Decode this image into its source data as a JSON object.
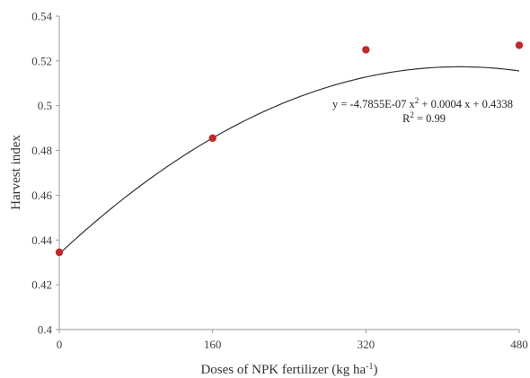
{
  "chart_data": {
    "type": "scatter",
    "title": "",
    "xlabel": "Doses of NPK fertilizer (kg ha",
    "xlabel_sup": "-1",
    "xlabel_end": ")",
    "ylabel": "Harvest index",
    "x_ticks": [
      0,
      160,
      320,
      480
    ],
    "x_tick_labels": [
      "0",
      "160",
      "320",
      "480"
    ],
    "y_ticks": [
      0.4,
      0.42,
      0.44,
      0.46,
      0.48,
      0.5,
      0.52,
      0.54
    ],
    "y_tick_labels": [
      "0.4",
      "0.42",
      "0.44",
      "0.46",
      "0.48",
      "0.5",
      "0.52",
      "0.54"
    ],
    "xlim": [
      0,
      480
    ],
    "ylim": [
      0.4,
      0.54
    ],
    "grid": false,
    "legend": "none",
    "series": [
      {
        "x": [
          0,
          160,
          320,
          480
        ],
        "y": [
          0.4345,
          0.4855,
          0.525,
          0.527
        ],
        "color": "#c0282b"
      }
    ],
    "trendline": {
      "type": "polynomial",
      "a": -4.7855e-07,
      "b": 0.0004,
      "c": 0.4338,
      "color": "#333333"
    },
    "annotation": {
      "equation_prefix": "y = -4.7855E-07  x",
      "equation_sup": "2",
      "equation_suffix": " + 0.0004 x + 0.4338",
      "r2_prefix": "R",
      "r2_sup": "2",
      "r2_suffix": " = 0.99"
    }
  }
}
